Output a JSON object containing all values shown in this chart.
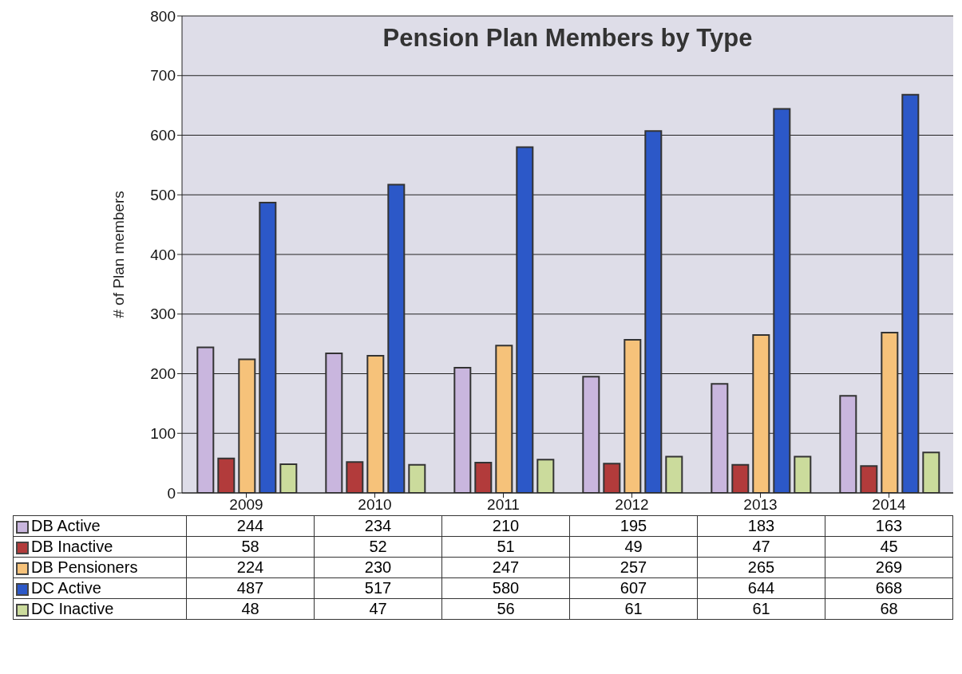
{
  "chart_data": {
    "type": "bar",
    "title": "Pension Plan Members by Type",
    "ylabel": "# of Plan members",
    "categories": [
      "2009",
      "2010",
      "2011",
      "2012",
      "2013",
      "2014"
    ],
    "series": [
      {
        "name": "DB Active",
        "color": "#c9b6de",
        "values": [
          244,
          234,
          210,
          195,
          183,
          163
        ]
      },
      {
        "name": "DB Inactive",
        "color": "#b23b3b",
        "values": [
          58,
          52,
          51,
          49,
          47,
          45
        ]
      },
      {
        "name": "DB Pensioners",
        "color": "#f6c27a",
        "values": [
          224,
          230,
          247,
          257,
          265,
          269
        ]
      },
      {
        "name": "DC Active",
        "color": "#2c58c8",
        "values": [
          487,
          517,
          580,
          607,
          644,
          668
        ]
      },
      {
        "name": "DC Inactive",
        "color": "#cbdb9c",
        "values": [
          48,
          47,
          56,
          61,
          61,
          68
        ]
      }
    ],
    "ylim": [
      0,
      800
    ],
    "yticks": [
      0,
      100,
      200,
      300,
      400,
      500,
      600,
      700,
      800
    ],
    "grid": "y",
    "legend": "bottom",
    "data_labels": true
  }
}
